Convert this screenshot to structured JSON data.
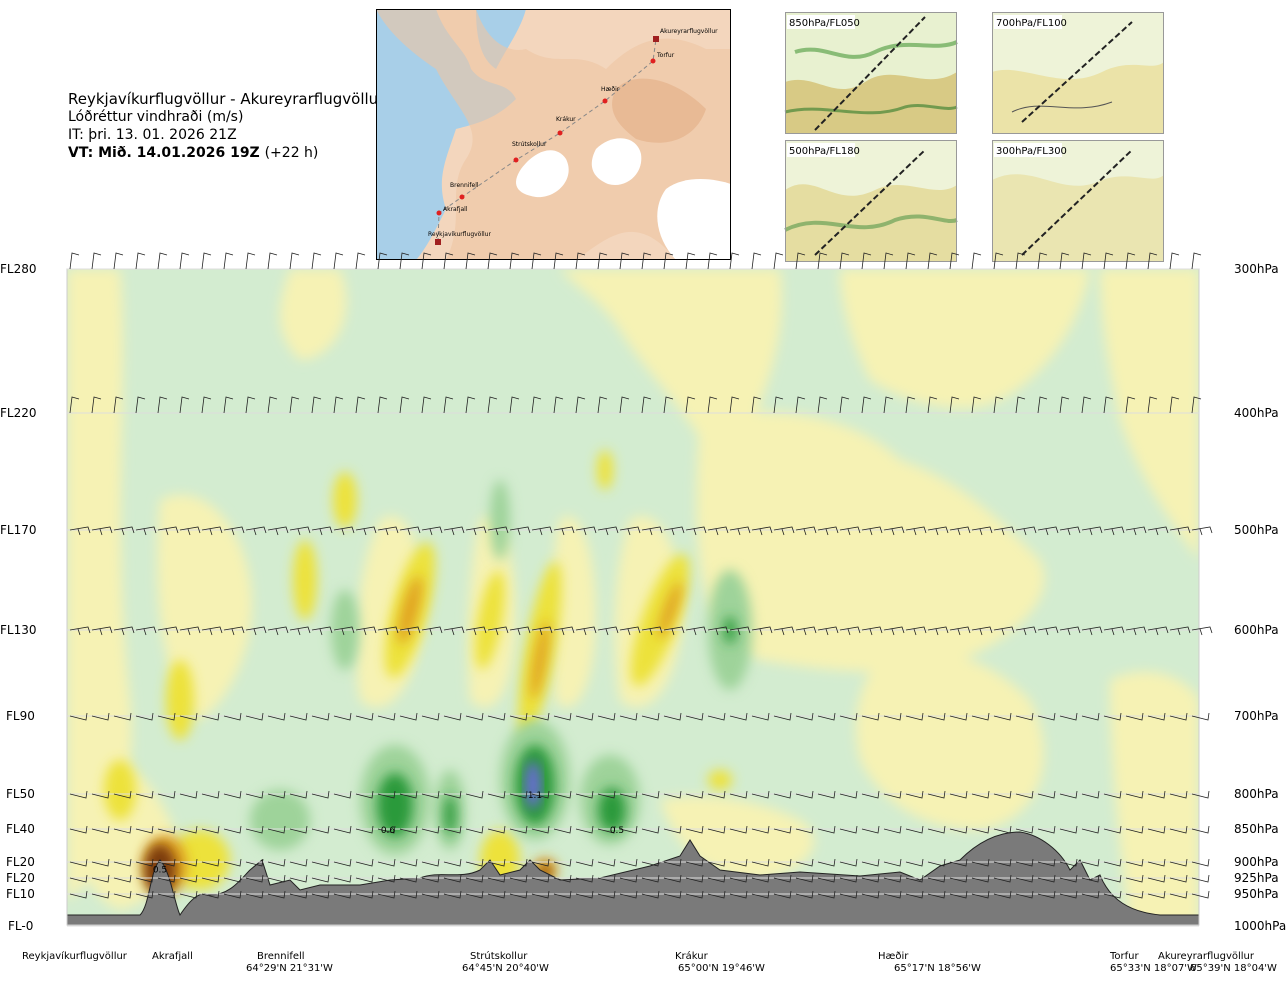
{
  "header": {
    "route": "Reykjavíkurflugvöllur - Akureyrarflugvöllur",
    "variable": "Lóðréttur vindhraði (m/s)",
    "it": "IT: þri. 13. 01. 2026 21Z",
    "vt_bold": "VT: Mið. 14.01.2026 19Z",
    "vt_offset": "(+22 h)"
  },
  "map": {
    "points": [
      "Akureyrarflugvöllur",
      "Torfur",
      "Hæðir",
      "Krákur",
      "Strútskollur",
      "Brennifell",
      "Akrafjall",
      "Reykjavíkurflugvöllur"
    ]
  },
  "insets": [
    "850hPa/FL050",
    "700hPa/FL100",
    "500hPa/FL180",
    "300hPa/FL300"
  ],
  "colors": {
    "brown": "#7a3a0a",
    "orange": "#e0a020",
    "yellow": "#ede23a",
    "paleyellow": "#f6f2b4",
    "palegreen": "#d3ecd0",
    "green": "#9ed39a",
    "darkgreen": "#2a9a3a",
    "blue": "#6a6ad8",
    "terrain": "#7a7a7a"
  },
  "chart_data": {
    "type": "heatmap",
    "levels_left": [
      "FL280",
      "FL220",
      "FL170",
      "FL130",
      "FL90",
      "FL50",
      "FL40",
      "FL20",
      "FL20",
      "FL10",
      "FL-0"
    ],
    "levels_right": [
      "300hPa",
      "400hPa",
      "500hPa",
      "600hPa",
      "700hPa",
      "800hPa",
      "850hPa",
      "900hPa",
      "925hPa",
      "950hPa",
      "1000hPa"
    ],
    "pressure_hpa": [
      300,
      400,
      500,
      600,
      700,
      800,
      850,
      900,
      925,
      950,
      1000
    ],
    "value_labels": [
      {
        "value": "0.5",
        "at": "Akrafjall",
        "hpa": 910
      },
      {
        "value": "0.6",
        "at": "Brennifell–Strútskollur",
        "hpa": 850
      },
      {
        "value": "1.1",
        "at": "Strútskollur",
        "hpa": 800
      },
      {
        "value": "0.5",
        "at": "Strútskollur–Krákur",
        "hpa": 850
      }
    ],
    "waypoints": [
      {
        "name": "Reykjavíkurflugvöllur",
        "coord": ""
      },
      {
        "name": "Akrafjall",
        "coord": ""
      },
      {
        "name": "Brennifell",
        "coord": "64°29'N 21°31'W"
      },
      {
        "name": "Strútskollur",
        "coord": "64°45'N 20°40'W"
      },
      {
        "name": "Krákur",
        "coord": "65°00'N 19°46'W"
      },
      {
        "name": "Hæðir",
        "coord": "65°17'N 18°56'W"
      },
      {
        "name": "Torfur",
        "coord": "65°33'N 18°07'W"
      },
      {
        "name": "Akureyrarflugvöllur",
        "coord": "65°39'N 18°04'W"
      }
    ]
  }
}
